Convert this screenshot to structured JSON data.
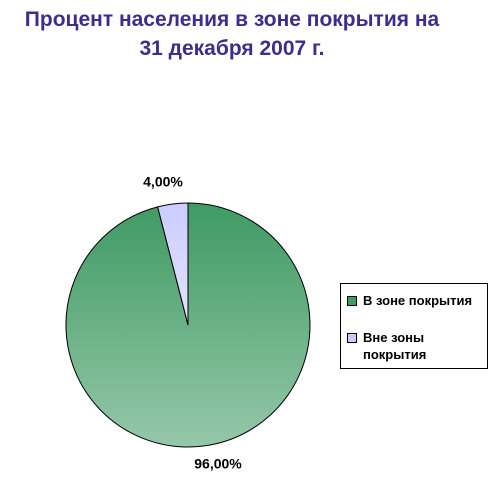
{
  "chart_data": {
    "type": "pie",
    "title": [
      "Процент населения в зоне покрытия на",
      "31 декабря 2007 г."
    ],
    "categories": [
      "В зоне покрытия",
      "Вне зоны покрытия"
    ],
    "values": [
      96,
      4
    ],
    "value_labels": [
      "96,00%",
      "4,00%"
    ],
    "colors": [
      "#3f9a63",
      "#ccccff"
    ]
  }
}
